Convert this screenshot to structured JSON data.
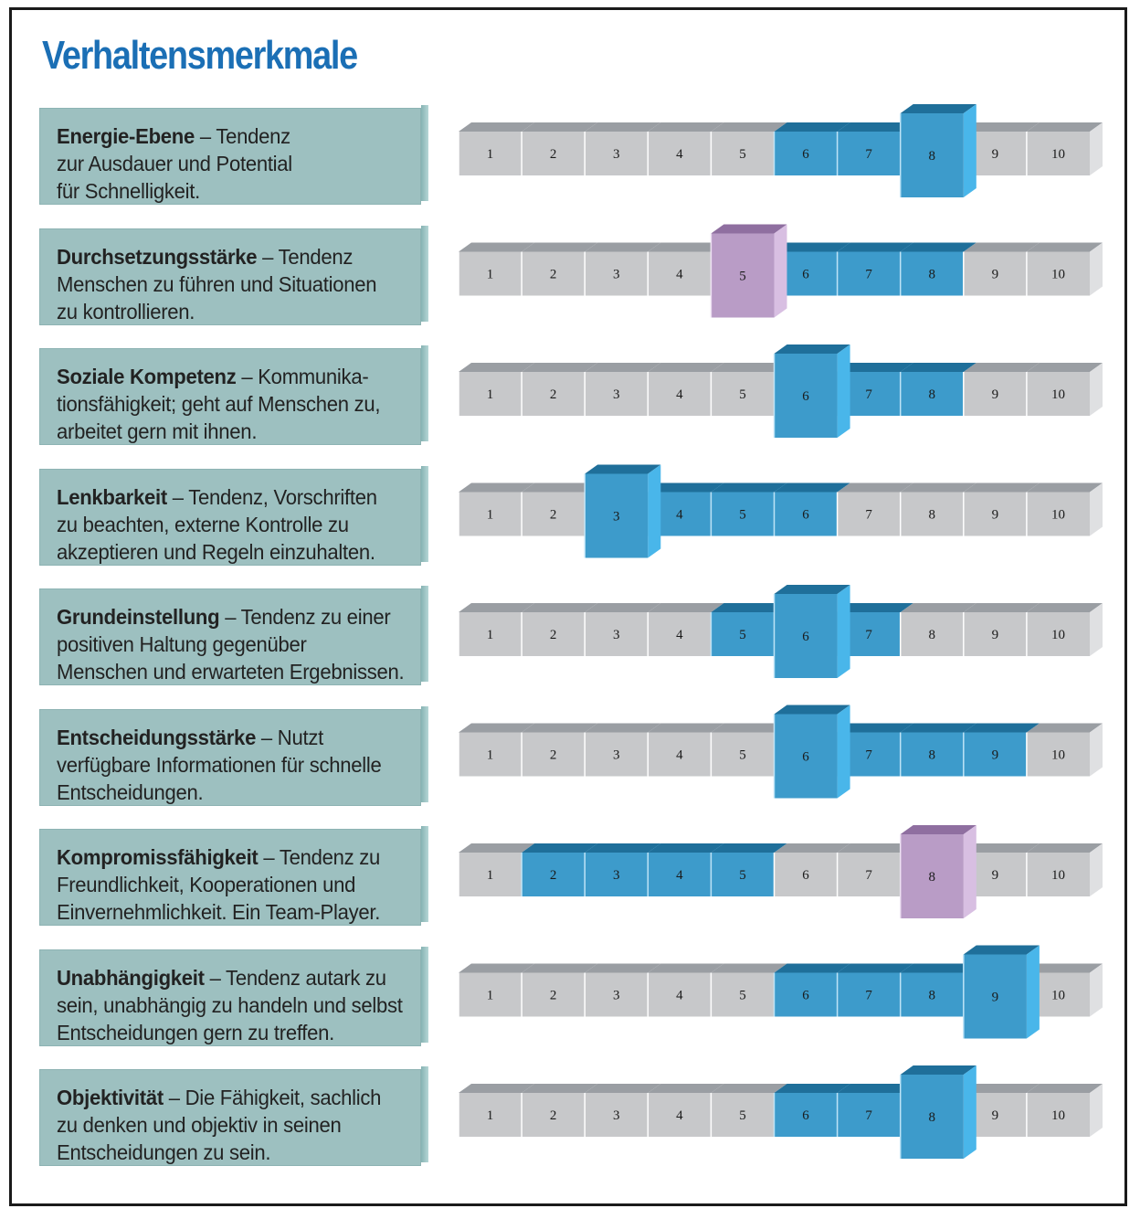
{
  "title": "Verhaltensmerkmale",
  "colors": {
    "title": "#1b6fb5",
    "grey": "#c7c8ca",
    "blue": "#3d9bcb",
    "violet": "#b99cc6",
    "label_bg": "#9dc0c0"
  },
  "rows": [
    {
      "bold": "Energie-Ebene",
      "rest": " – Tendenz",
      "line2": "zur Ausdauer und Potential",
      "line3": "für Schnelligkeit."
    },
    {
      "bold": "Durchsetzungsstärke",
      "rest": " – Tendenz",
      "line2": "Menschen zu führen und Situationen",
      "line3": "zu kontrollieren."
    },
    {
      "bold": "Soziale Kompetenz",
      "rest": " – Kommunika-",
      "line2": "tionsfähigkeit; geht auf Menschen zu,",
      "line3": "arbeitet gern mit ihnen."
    },
    {
      "bold": "Lenkbarkeit",
      "rest": " – Tendenz, Vorschriften",
      "line2": "zu beachten, externe Kontrolle zu",
      "line3": "akzeptieren und Regeln einzuhalten."
    },
    {
      "bold": "Grundeinstellung",
      "rest": " – Tendenz zu einer",
      "line2": "positiven Haltung gegenüber",
      "line3": "Menschen und erwarteten Ergebnissen."
    },
    {
      "bold": "Entscheidungsstärke",
      "rest": " – Nutzt",
      "line2": "verfügbare Informationen für schnelle",
      "line3": "Entscheidungen."
    },
    {
      "bold": "Kompromissfähigkeit",
      "rest": " – Tendenz zu",
      "line2": "Freundlichkeit, Kooperationen und",
      "line3": "Einvernehmlichkeit. Ein Team-Player."
    },
    {
      "bold": "Unabhängigkeit",
      "rest": " – Tendenz autark zu",
      "line2": "sein, unabhängig zu handeln und selbst",
      "line3": "Entscheidungen gern zu treffen."
    },
    {
      "bold": "Objektivität",
      "rest": " – Die Fähigkeit, sachlich",
      "line2": "zu denken und objektiv in seinen",
      "line3": "Entscheidungen zu sein."
    }
  ],
  "chart_data": {
    "type": "table",
    "scale_labels": [
      "1",
      "2",
      "3",
      "4",
      "5",
      "6",
      "7",
      "8",
      "9",
      "10"
    ],
    "series": [
      {
        "row": "Energie-Ebene",
        "range": [
          6,
          8
        ],
        "marker": 8,
        "marker_color": "blue"
      },
      {
        "row": "Durchsetzungsstärke",
        "range": [
          6,
          8
        ],
        "marker": 5,
        "marker_color": "violet"
      },
      {
        "row": "Soziale Kompetenz",
        "range": [
          6,
          8
        ],
        "marker": 6,
        "marker_color": "blue"
      },
      {
        "row": "Lenkbarkeit",
        "range": [
          3,
          6
        ],
        "marker": 3,
        "marker_color": "blue"
      },
      {
        "row": "Grundeinstellung",
        "range": [
          5,
          7
        ],
        "marker": 6,
        "marker_color": "blue"
      },
      {
        "row": "Entscheidungsstärke",
        "range": [
          6,
          9
        ],
        "marker": 6,
        "marker_color": "blue"
      },
      {
        "row": "Kompromissfähigkeit",
        "range": [
          2,
          5
        ],
        "marker": 8,
        "marker_color": "violet"
      },
      {
        "row": "Unabhängigkeit",
        "range": [
          6,
          9
        ],
        "marker": 9,
        "marker_color": "blue"
      },
      {
        "row": "Objektivität",
        "range": [
          6,
          8
        ],
        "marker": 8,
        "marker_color": "blue"
      }
    ]
  }
}
